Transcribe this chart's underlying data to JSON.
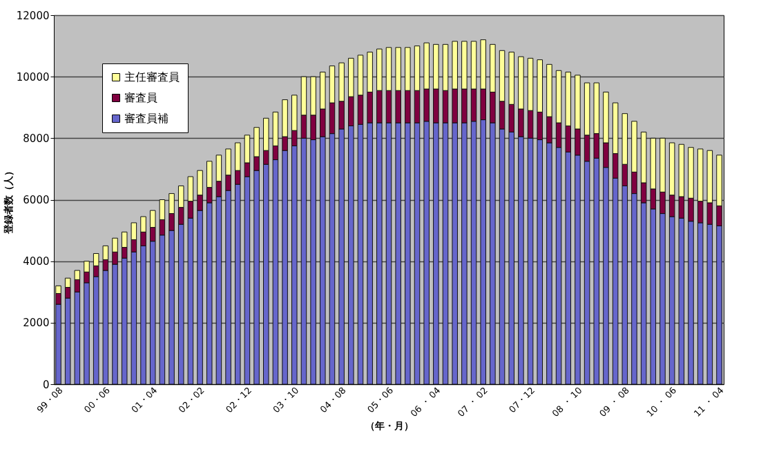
{
  "chart_data": {
    "type": "bar",
    "stacked": true,
    "xlabel": "（年・月）",
    "ylabel": "登録者数（人）",
    "categories": [
      "99・08",
      null,
      null,
      null,
      null,
      "00・06",
      null,
      null,
      null,
      null,
      "01・04",
      null,
      null,
      null,
      null,
      "02・02",
      null,
      null,
      null,
      null,
      "02・12",
      null,
      null,
      null,
      null,
      "03・10",
      null,
      null,
      null,
      null,
      "04・08",
      null,
      null,
      null,
      null,
      "05・06",
      null,
      null,
      null,
      null,
      "06 ・ 04",
      null,
      null,
      null,
      null,
      "07 ・ 02",
      null,
      null,
      null,
      null,
      "07・12",
      null,
      null,
      null,
      null,
      "08 ・ 10",
      null,
      null,
      null,
      null,
      "09 ・ 08",
      null,
      null,
      null,
      null,
      "10 ・ 06",
      null,
      null,
      null,
      null,
      "11 ・ 04"
    ],
    "series": [
      {
        "name": "審査員補",
        "color": "#6666cc",
        "values": [
          2600,
          2800,
          3000,
          3300,
          3500,
          3700,
          3900,
          4100,
          4300,
          4500,
          4650,
          4850,
          5000,
          5200,
          5400,
          5650,
          5900,
          6100,
          6300,
          6500,
          6750,
          6950,
          7150,
          7300,
          7600,
          7750,
          8000,
          7950,
          8050,
          8150,
          8300,
          8400,
          8450,
          8500,
          8500,
          8500,
          8500,
          8500,
          8500,
          8550,
          8500,
          8500,
          8500,
          8500,
          8550,
          8600,
          8500,
          8300,
          8200,
          8050,
          8000,
          7950,
          7850,
          7700,
          7550,
          7450,
          7250,
          7350,
          7050,
          6700,
          6450,
          6200,
          5900,
          5700,
          5550,
          5450,
          5400,
          5300,
          5250,
          5200,
          5150
        ]
      },
      {
        "name": "審査員",
        "color": "#800040",
        "values": [
          350,
          350,
          400,
          350,
          350,
          350,
          400,
          350,
          400,
          450,
          450,
          500,
          550,
          550,
          550,
          500,
          500,
          500,
          500,
          450,
          450,
          450,
          450,
          450,
          450,
          500,
          750,
          800,
          900,
          1000,
          900,
          950,
          950,
          1000,
          1050,
          1050,
          1050,
          1050,
          1050,
          1050,
          1100,
          1050,
          1100,
          1100,
          1050,
          1000,
          1000,
          900,
          900,
          900,
          900,
          900,
          850,
          800,
          850,
          850,
          850,
          800,
          800,
          800,
          700,
          700,
          650,
          650,
          700,
          700,
          700,
          750,
          700,
          700,
          650
        ]
      },
      {
        "name": "主任審査員",
        "color": "#ffff99",
        "values": [
          250,
          300,
          300,
          350,
          400,
          450,
          450,
          500,
          550,
          500,
          550,
          650,
          650,
          700,
          800,
          800,
          850,
          850,
          850,
          900,
          900,
          950,
          1050,
          1100,
          1200,
          1150,
          1250,
          1250,
          1200,
          1200,
          1250,
          1250,
          1300,
          1300,
          1350,
          1400,
          1400,
          1400,
          1450,
          1500,
          1450,
          1500,
          1550,
          1550,
          1550,
          1600,
          1550,
          1650,
          1700,
          1700,
          1700,
          1700,
          1700,
          1700,
          1750,
          1750,
          1700,
          1650,
          1650,
          1650,
          1650,
          1650,
          1650,
          1650,
          1750,
          1700,
          1700,
          1650,
          1700,
          1700,
          1650
        ]
      }
    ],
    "ylim": [
      0,
      12000
    ],
    "yticks": [
      0,
      2000,
      4000,
      6000,
      8000,
      10000,
      12000
    ],
    "grid": "y",
    "legend": "top left"
  }
}
